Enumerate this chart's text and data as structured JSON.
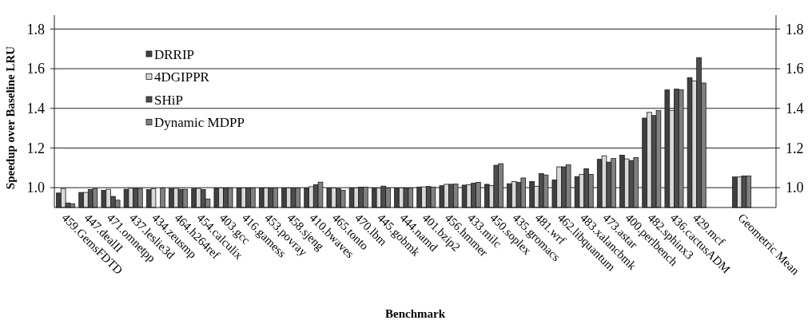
{
  "chart_data": {
    "type": "bar",
    "xlabel": "Benchmark",
    "ylabel": "Speedup over Baseline LRU",
    "categories": [
      "459.GemsFDTD",
      "447.dealII",
      "471.omnetpp",
      "437.leslie3d",
      "434.zeusmp",
      "464.h264ref",
      "454.calculix",
      "403.gcc",
      "416.gamess",
      "453.povray",
      "458.sjeng",
      "410.bwaves",
      "465.tonto",
      "470.lbm",
      "445.gobmk",
      "444.namd",
      "401.bzip2",
      "456.hmmer",
      "433.milc",
      "450.soplex",
      "435.gromacs",
      "481.wrf",
      "462.libquantum",
      "483.xalancbmk",
      "473.astar",
      "400.perlbench",
      "482.sphinx3",
      "436.cactusADM",
      "429.mcf",
      null,
      "Geometric Mean"
    ],
    "series": [
      {
        "name": "DRRIP",
        "color": "#404040",
        "values": [
          0.973,
          0.976,
          0.987,
          0.992,
          0.99,
          0.996,
          0.996,
          0.999,
          0.999,
          0.999,
          0.999,
          0.998,
          0.999,
          0.999,
          0.999,
          0.999,
          1.003,
          1.01,
          1.013,
          1.017,
          1.02,
          1.031,
          1.039,
          1.056,
          1.143,
          1.164,
          1.351,
          1.493,
          1.555,
          null,
          1.054
        ]
      },
      {
        "name": "4DGIPPR",
        "color": "#d9d9d9",
        "values": [
          0.996,
          0.976,
          0.992,
          0.997,
          0.995,
          0.997,
          0.996,
          0.999,
          0.999,
          0.999,
          0.999,
          1.005,
          0.999,
          0.999,
          0.999,
          0.999,
          1.004,
          1.017,
          1.015,
          1.011,
          1.031,
          1.007,
          1.105,
          1.067,
          1.161,
          1.145,
          1.38,
          1.39,
          1.539,
          null,
          1.054
        ]
      },
      {
        "name": "SHiP",
        "color": "#4d4d4d",
        "values": [
          0.923,
          0.991,
          0.956,
          0.997,
          0.9,
          0.992,
          0.991,
          0.999,
          0.999,
          0.999,
          0.999,
          1.015,
          0.995,
          1.003,
          1.008,
          0.999,
          1.006,
          1.017,
          1.023,
          1.113,
          1.027,
          1.071,
          1.105,
          1.096,
          1.129,
          1.137,
          1.364,
          1.497,
          1.656,
          null,
          1.059
        ]
      },
      {
        "name": "Dynamic MDPP",
        "color": "#808080",
        "values": [
          0.919,
          0.996,
          0.937,
          0.996,
          0.998,
          0.992,
          0.943,
          0.999,
          0.999,
          0.999,
          0.999,
          1.028,
          0.987,
          1.003,
          0.999,
          0.999,
          1.003,
          1.018,
          1.027,
          1.121,
          1.049,
          1.064,
          1.115,
          1.067,
          1.147,
          1.152,
          1.389,
          1.494,
          1.528,
          null,
          1.059
        ]
      }
    ],
    "ylim": [
      0.9,
      1.87
    ],
    "yticks": [
      {
        "value": 1,
        "label": "1.0"
      },
      {
        "value": 1.2,
        "label": "1.2"
      },
      {
        "value": 1.4,
        "label": "1.4"
      },
      {
        "value": 1.6,
        "label": "1.6"
      },
      {
        "value": 1.8,
        "label": "1.8"
      }
    ],
    "y2lim": [
      0.9,
      1.87
    ],
    "y2ticks": [
      {
        "value": 1,
        "label": "1.0"
      },
      {
        "value": 1.2,
        "label": "1.2"
      },
      {
        "value": 1.4,
        "label": "1.4"
      },
      {
        "value": 1.6,
        "label": "1.6"
      },
      {
        "value": 1.8,
        "label": "1.8"
      }
    ],
    "grid": "y",
    "legend": "top left"
  }
}
